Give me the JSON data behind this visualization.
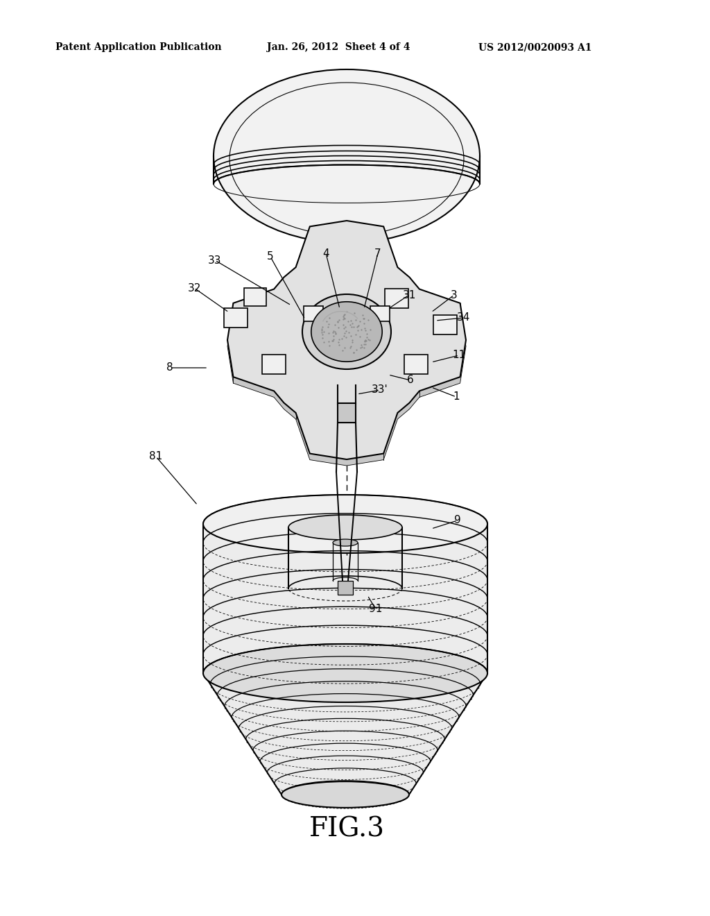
{
  "bg_color": "#ffffff",
  "line_color": "#000000",
  "header_left": "Patent Application Publication",
  "header_mid": "Jan. 26, 2012  Sheet 4 of 4",
  "header_right": "US 2012/0020093 A1",
  "figure_label": "FIG.3",
  "labels_info": [
    [
      310,
      375,
      "33",
      420,
      440
    ],
    [
      280,
      415,
      "32",
      330,
      450
    ],
    [
      390,
      370,
      "5",
      440,
      460
    ],
    [
      470,
      365,
      "4",
      490,
      445
    ],
    [
      545,
      365,
      "7",
      525,
      445
    ],
    [
      590,
      425,
      "31",
      560,
      445
    ],
    [
      655,
      425,
      "3",
      622,
      450
    ],
    [
      668,
      458,
      "34",
      628,
      462
    ],
    [
      245,
      530,
      "8",
      300,
      530
    ],
    [
      592,
      548,
      "6",
      560,
      540
    ],
    [
      548,
      562,
      "33'",
      515,
      568
    ],
    [
      662,
      512,
      "11",
      622,
      522
    ],
    [
      658,
      572,
      "1",
      622,
      558
    ],
    [
      225,
      658,
      "81",
      285,
      728
    ],
    [
      660,
      750,
      "9",
      622,
      762
    ],
    [
      542,
      878,
      "91",
      530,
      858
    ]
  ]
}
